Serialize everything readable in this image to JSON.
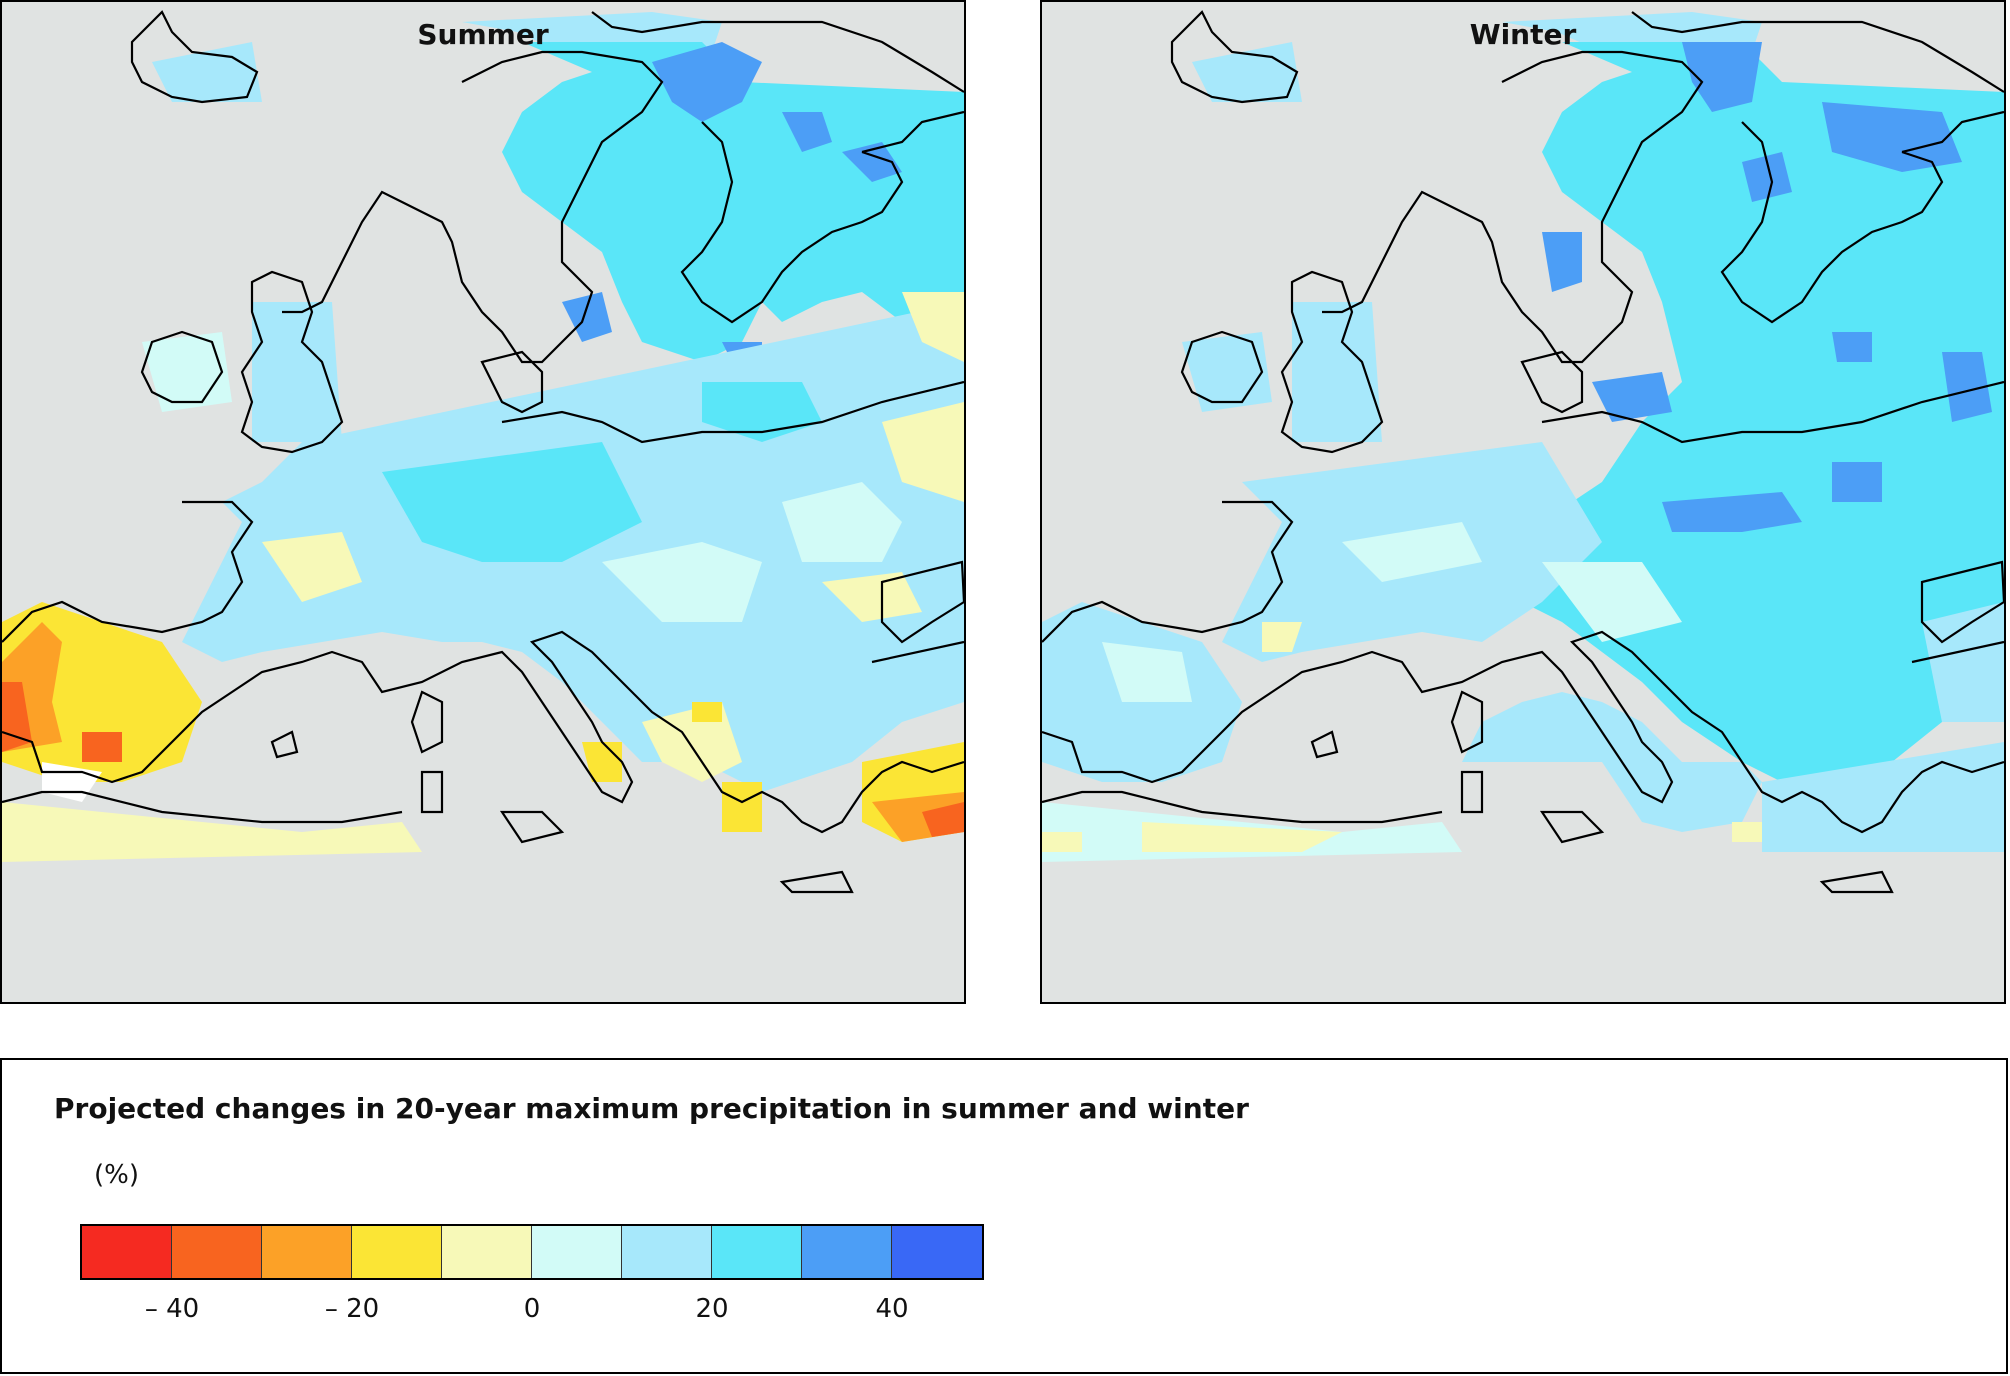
{
  "panels": [
    {
      "id": "summer",
      "title": "Summer"
    },
    {
      "id": "winter",
      "title": "Winter"
    }
  ],
  "legend": {
    "title": "Projected changes in 20-year maximum precipitation in summer and winter",
    "unit": "(%)",
    "colors": [
      "#f52a21",
      "#f8641f",
      "#fca127",
      "#fbe535",
      "#f7f9b8",
      "#d2fbf7",
      "#a7e8fb",
      "#5ae6f8",
      "#4c9ef6",
      "#3968f6"
    ],
    "ticks": [
      {
        "label": "– 40",
        "value": -40
      },
      {
        "label": "– 20",
        "value": -20
      },
      {
        "label": "0",
        "value": 0
      },
      {
        "label": "20",
        "value": 20
      },
      {
        "label": "40",
        "value": 40
      }
    ],
    "range": [
      -50,
      50
    ]
  },
  "colors": {
    "land_outside": "#e0e3e2",
    "sea": "#ffffff",
    "coast": "#000000"
  }
}
